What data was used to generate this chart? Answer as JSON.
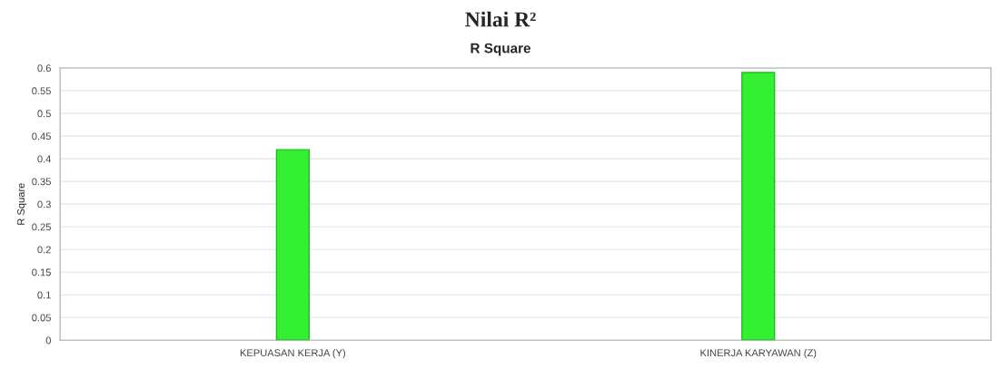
{
  "chart_data": {
    "type": "bar",
    "title": "Nilai R²",
    "subtitle": "R Square",
    "ylabel": "R Square",
    "categories": [
      "KEPUASAN KERJA (Y)",
      "KINERJA KARYAWAN (Z)"
    ],
    "values": [
      0.42,
      0.59
    ],
    "color": "#33f033",
    "ylim": [
      0,
      0.6
    ],
    "yticks": [
      0,
      0.05,
      0.1,
      0.15,
      0.2,
      0.25,
      0.3,
      0.35,
      0.4,
      0.45,
      0.5,
      0.55,
      0.6
    ],
    "grid": "y"
  }
}
